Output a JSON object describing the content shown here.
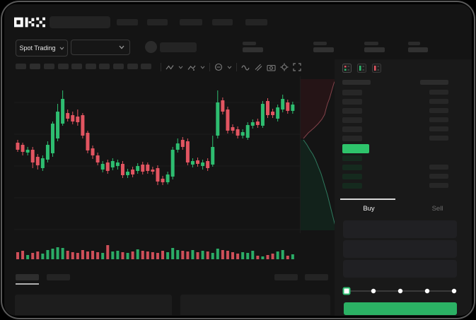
{
  "header": {
    "logo_text": "OKX"
  },
  "subheader": {
    "market_selector_label": "Spot Trading"
  },
  "trade_panel": {
    "buy_tab": "Buy",
    "sell_tab": "Sell",
    "slider_steps": 5,
    "slider_value_index": 0
  },
  "order_book": {
    "ask_rows": 6,
    "bid_rows": 4,
    "ask_row_start_y": 43,
    "bid_row_start_y": 136,
    "row_step_y": 13
  },
  "colors": {
    "up": "#2ebd70",
    "down": "#e25561",
    "last_price": "#2ec46b",
    "buy_button": "#2bb164",
    "ask_depth_fill": "#251416",
    "bid_depth_fill": "#12221b",
    "ask_depth_line": "#83424a",
    "bid_depth_line": "#2f7a5e",
    "grid": "#1c1c1c",
    "skeleton": "#262626"
  },
  "chart_data": [
    {
      "type": "candlestick",
      "title": "",
      "xlabel": "",
      "ylabel": "",
      "axis_labels_visible": false,
      "units": "relative price scale (no axis ticks rendered in UI)",
      "candle_format": [
        "direction(1=up,0=down)",
        "body_high",
        "body_low",
        "wick_high",
        "wick_low",
        "volume"
      ],
      "ylim": [
        60,
        210
      ],
      "candles": [
        [
          0,
          128,
          118,
          132,
          115,
          10
        ],
        [
          0,
          125,
          115,
          128,
          110,
          12
        ],
        [
          1,
          118,
          114,
          122,
          110,
          6
        ],
        [
          0,
          118,
          100,
          122,
          92,
          9
        ],
        [
          0,
          108,
          96,
          112,
          90,
          11
        ],
        [
          1,
          106,
          92,
          110,
          88,
          8
        ],
        [
          1,
          125,
          104,
          130,
          100,
          13
        ],
        [
          1,
          155,
          113,
          158,
          108,
          15
        ],
        [
          1,
          172,
          134,
          183,
          130,
          17
        ],
        [
          1,
          190,
          155,
          202,
          152,
          16
        ],
        [
          0,
          170,
          162,
          175,
          158,
          12
        ],
        [
          0,
          167,
          158,
          172,
          154,
          10
        ],
        [
          0,
          165,
          157,
          175,
          152,
          9
        ],
        [
          0,
          167,
          138,
          170,
          134,
          13
        ],
        [
          0,
          142,
          117,
          145,
          113,
          11
        ],
        [
          0,
          120,
          110,
          124,
          105,
          12
        ],
        [
          0,
          110,
          100,
          114,
          96,
          10
        ],
        [
          1,
          98,
          90,
          102,
          86,
          9
        ],
        [
          0,
          100,
          88,
          104,
          84,
          20
        ],
        [
          1,
          102,
          93,
          106,
          89,
          11
        ],
        [
          1,
          100,
          95,
          104,
          90,
          12
        ],
        [
          0,
          98,
          82,
          102,
          78,
          10
        ],
        [
          1,
          87,
          82,
          91,
          78,
          9
        ],
        [
          0,
          90,
          83,
          94,
          79,
          11
        ],
        [
          1,
          95,
          88,
          99,
          84,
          14
        ],
        [
          0,
          97,
          87,
          101,
          83,
          12
        ],
        [
          0,
          97,
          88,
          100,
          84,
          11
        ],
        [
          0,
          90,
          87,
          94,
          83,
          10
        ],
        [
          0,
          92,
          73,
          96,
          68,
          9
        ],
        [
          0,
          77,
          72,
          81,
          68,
          12
        ],
        [
          1,
          83,
          72,
          87,
          69,
          10
        ],
        [
          1,
          118,
          80,
          122,
          76,
          16
        ],
        [
          1,
          127,
          118,
          134,
          114,
          13
        ],
        [
          0,
          132,
          122,
          136,
          118,
          12
        ],
        [
          0,
          130,
          100,
          134,
          96,
          11
        ],
        [
          1,
          102,
          97,
          106,
          93,
          13
        ],
        [
          0,
          103,
          98,
          107,
          94,
          10
        ],
        [
          1,
          100,
          95,
          104,
          90,
          12
        ],
        [
          0,
          102,
          92,
          106,
          88,
          11
        ],
        [
          1,
          122,
          97,
          138,
          94,
          9
        ],
        [
          1,
          185,
          138,
          202,
          134,
          15
        ],
        [
          0,
          188,
          172,
          192,
          168,
          13
        ],
        [
          0,
          175,
          145,
          179,
          141,
          12
        ],
        [
          0,
          150,
          145,
          154,
          141,
          10
        ],
        [
          0,
          147,
          138,
          151,
          134,
          8
        ],
        [
          1,
          143,
          138,
          147,
          134,
          10
        ],
        [
          1,
          153,
          135,
          157,
          132,
          9
        ],
        [
          1,
          157,
          152,
          161,
          148,
          12
        ],
        [
          0,
          158,
          153,
          162,
          149,
          5
        ],
        [
          1,
          183,
          152,
          187,
          149,
          4
        ],
        [
          0,
          187,
          167,
          191,
          163,
          6
        ],
        [
          0,
          172,
          167,
          176,
          163,
          8
        ],
        [
          1,
          178,
          162,
          182,
          158,
          11
        ],
        [
          1,
          190,
          175,
          196,
          171,
          13
        ],
        [
          0,
          185,
          173,
          189,
          169,
          5
        ],
        [
          1,
          182,
          173,
          186,
          169,
          7
        ]
      ],
      "gridlines_y_local": [
        37,
        82,
        127,
        172,
        217
      ]
    },
    {
      "type": "area",
      "name": "vertical-depth-chart",
      "asks_line": [
        [
          50,
          4
        ],
        [
          47,
          10
        ],
        [
          45,
          17
        ],
        [
          43,
          24
        ],
        [
          41,
          31
        ],
        [
          38,
          39
        ],
        [
          36,
          46
        ],
        [
          34,
          54
        ],
        [
          30,
          61
        ],
        [
          25,
          67
        ],
        [
          19,
          73
        ],
        [
          11,
          80
        ],
        [
          4,
          88
        ]
      ],
      "bids_line": [
        [
          4,
          90
        ],
        [
          9,
          97
        ],
        [
          13,
          104
        ],
        [
          17,
          110
        ],
        [
          21,
          118
        ],
        [
          25,
          128
        ],
        [
          29,
          138
        ],
        [
          32,
          148
        ],
        [
          35,
          158
        ],
        [
          38,
          168
        ],
        [
          41,
          180
        ],
        [
          44,
          192
        ],
        [
          47,
          204
        ],
        [
          49,
          212
        ],
        [
          51,
          218
        ]
      ]
    }
  ]
}
